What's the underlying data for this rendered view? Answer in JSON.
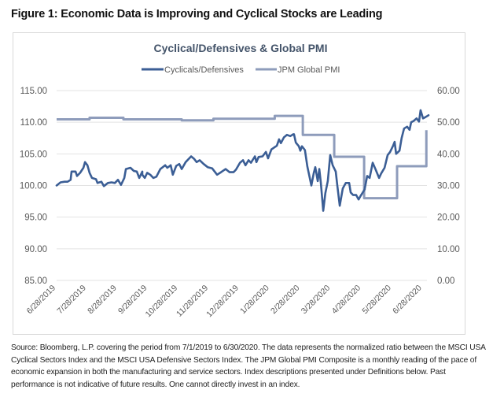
{
  "figure_title": "Figure 1: Economic Data is Improving and Cyclical Stocks are Leading",
  "source_note": "Source: Bloomberg, L.P. covering the period from 7/1/2019 to 6/30/2020. The data represents the normalized ratio between the MSCI USA Cyclical Sectors Index and the MSCI USA Defensive Sectors Index. The JPM Global PMI Composite is a monthly reading of the pace of economic expansion in both the manufacturing and service sectors. Index descriptions presented under Definitions below.  Past performance is not indicative of future results. One cannot directly invest in an index.",
  "chart_data": {
    "type": "line",
    "title": "Cyclical/Defensives & Global PMI",
    "legend_position": "top-center",
    "grid": true,
    "x_axis": {
      "unit": "months since 6/28/2019",
      "range": [
        0,
        12.15
      ],
      "tick_labels": [
        "6/28/2019",
        "7/28/2019",
        "8/28/2019",
        "9/28/2019",
        "10/28/2019",
        "11/28/2019",
        "12/28/2019",
        "1/28/2020",
        "2/28/2020",
        "3/28/2020",
        "4/28/2020",
        "5/28/2020",
        "6/28/2020"
      ]
    },
    "y_left": {
      "range": [
        85,
        115
      ],
      "ticks": [
        85,
        90,
        95,
        100,
        105,
        110,
        115
      ],
      "tick_labels": [
        "85.00",
        "90.00",
        "95.00",
        "100.00",
        "105.00",
        "110.00",
        "115.00"
      ]
    },
    "y_right": {
      "range": [
        0,
        60
      ],
      "ticks": [
        0,
        10,
        20,
        30,
        40,
        50,
        60
      ],
      "tick_labels": [
        "0.00",
        "10.00",
        "20.00",
        "30.00",
        "40.00",
        "50.00",
        "60.00"
      ]
    },
    "series": [
      {
        "name": "Cyclicals/Defensives",
        "axis": "left",
        "color": "#3b5e95",
        "step": false,
        "points": [
          [
            0.0,
            100.0
          ],
          [
            0.13,
            100.5
          ],
          [
            0.26,
            100.6
          ],
          [
            0.36,
            100.6
          ],
          [
            0.46,
            100.9
          ],
          [
            0.49,
            102.2
          ],
          [
            0.62,
            102.2
          ],
          [
            0.67,
            101.5
          ],
          [
            0.77,
            102.0
          ],
          [
            0.88,
            102.8
          ],
          [
            0.93,
            103.7
          ],
          [
            1.01,
            103.2
          ],
          [
            1.08,
            102.0
          ],
          [
            1.16,
            101.2
          ],
          [
            1.29,
            101.0
          ],
          [
            1.34,
            100.4
          ],
          [
            1.47,
            100.6
          ],
          [
            1.55,
            99.9
          ],
          [
            1.68,
            100.4
          ],
          [
            1.8,
            100.5
          ],
          [
            1.91,
            100.4
          ],
          [
            2.01,
            100.9
          ],
          [
            2.11,
            100.1
          ],
          [
            2.22,
            101.2
          ],
          [
            2.27,
            102.6
          ],
          [
            2.42,
            102.8
          ],
          [
            2.53,
            102.3
          ],
          [
            2.63,
            102.2
          ],
          [
            2.71,
            101.2
          ],
          [
            2.81,
            102.2
          ],
          [
            2.81,
            101.7
          ],
          [
            2.89,
            101.2
          ],
          [
            2.97,
            102.0
          ],
          [
            3.07,
            101.7
          ],
          [
            3.17,
            101.2
          ],
          [
            3.27,
            101.4
          ],
          [
            3.4,
            102.6
          ],
          [
            3.56,
            103.2
          ],
          [
            3.63,
            102.8
          ],
          [
            3.74,
            103.2
          ],
          [
            3.81,
            101.7
          ],
          [
            3.92,
            103.1
          ],
          [
            4.02,
            103.4
          ],
          [
            4.1,
            102.6
          ],
          [
            4.23,
            103.7
          ],
          [
            4.41,
            104.6
          ],
          [
            4.51,
            104.2
          ],
          [
            4.59,
            103.7
          ],
          [
            4.69,
            104.0
          ],
          [
            4.82,
            103.4
          ],
          [
            4.95,
            102.9
          ],
          [
            5.1,
            102.7
          ],
          [
            5.26,
            101.7
          ],
          [
            5.39,
            102.1
          ],
          [
            5.54,
            102.6
          ],
          [
            5.67,
            102.1
          ],
          [
            5.8,
            102.1
          ],
          [
            5.88,
            102.5
          ],
          [
            6.01,
            103.6
          ],
          [
            6.11,
            104.0
          ],
          [
            6.19,
            103.2
          ],
          [
            6.29,
            104.0
          ],
          [
            6.37,
            103.6
          ],
          [
            6.5,
            104.6
          ],
          [
            6.55,
            103.7
          ],
          [
            6.62,
            104.5
          ],
          [
            6.75,
            104.6
          ],
          [
            6.86,
            105.3
          ],
          [
            6.93,
            104.3
          ],
          [
            7.04,
            105.7
          ],
          [
            7.22,
            106.3
          ],
          [
            7.29,
            107.3
          ],
          [
            7.35,
            106.7
          ],
          [
            7.45,
            107.6
          ],
          [
            7.55,
            108.0
          ],
          [
            7.66,
            107.8
          ],
          [
            7.76,
            108.1
          ],
          [
            7.78,
            108.1
          ],
          [
            7.84,
            106.8
          ],
          [
            7.94,
            106.2
          ],
          [
            7.99,
            105.5
          ],
          [
            8.04,
            106.2
          ],
          [
            8.14,
            105.6
          ],
          [
            8.22,
            103.0
          ],
          [
            8.35,
            100.0
          ],
          [
            8.43,
            102.0
          ],
          [
            8.48,
            102.9
          ],
          [
            8.56,
            100.7
          ],
          [
            8.61,
            102.6
          ],
          [
            8.66,
            100.5
          ],
          [
            8.74,
            96.0
          ],
          [
            8.81,
            98.8
          ],
          [
            8.89,
            100.7
          ],
          [
            8.97,
            104.8
          ],
          [
            9.05,
            103.2
          ],
          [
            9.15,
            102.2
          ],
          [
            9.2,
            100.0
          ],
          [
            9.28,
            96.8
          ],
          [
            9.38,
            99.5
          ],
          [
            9.41,
            99.8
          ],
          [
            9.48,
            100.4
          ],
          [
            9.59,
            100.4
          ],
          [
            9.64,
            98.9
          ],
          [
            9.72,
            98.5
          ],
          [
            9.82,
            98.5
          ],
          [
            9.9,
            97.8
          ],
          [
            9.97,
            98.4
          ],
          [
            10.1,
            99.4
          ],
          [
            10.1,
            99.5
          ],
          [
            10.18,
            101.5
          ],
          [
            10.26,
            101.2
          ],
          [
            10.36,
            103.6
          ],
          [
            10.46,
            102.5
          ],
          [
            10.57,
            101.2
          ],
          [
            10.64,
            101.9
          ],
          [
            10.75,
            102.8
          ],
          [
            10.85,
            104.8
          ],
          [
            10.93,
            105.3
          ],
          [
            11.03,
            106.3
          ],
          [
            11.08,
            106.9
          ],
          [
            11.13,
            105.0
          ],
          [
            11.24,
            105.5
          ],
          [
            11.31,
            107.5
          ],
          [
            11.39,
            109.0
          ],
          [
            11.49,
            109.3
          ],
          [
            11.57,
            108.8
          ],
          [
            11.62,
            110.0
          ],
          [
            11.7,
            110.2
          ],
          [
            11.8,
            110.6
          ],
          [
            11.88,
            110.1
          ],
          [
            11.93,
            111.9
          ],
          [
            12.01,
            110.6
          ],
          [
            12.09,
            110.8
          ],
          [
            12.19,
            111.1
          ]
        ]
      },
      {
        "name": "JPM Global PMI",
        "axis": "right",
        "color": "#8e9cbb",
        "step": true,
        "points": [
          [
            0.0,
            50.9
          ],
          [
            1.08,
            51.4
          ],
          [
            2.19,
            50.9
          ],
          [
            4.1,
            50.6
          ],
          [
            5.14,
            51.1
          ],
          [
            7.15,
            52.0
          ],
          [
            8.07,
            46.0
          ],
          [
            9.1,
            39.1
          ],
          [
            10.08,
            26.0
          ],
          [
            11.16,
            36.1
          ],
          [
            12.12,
            47.5
          ]
        ],
        "step_end": 12.12
      }
    ]
  }
}
